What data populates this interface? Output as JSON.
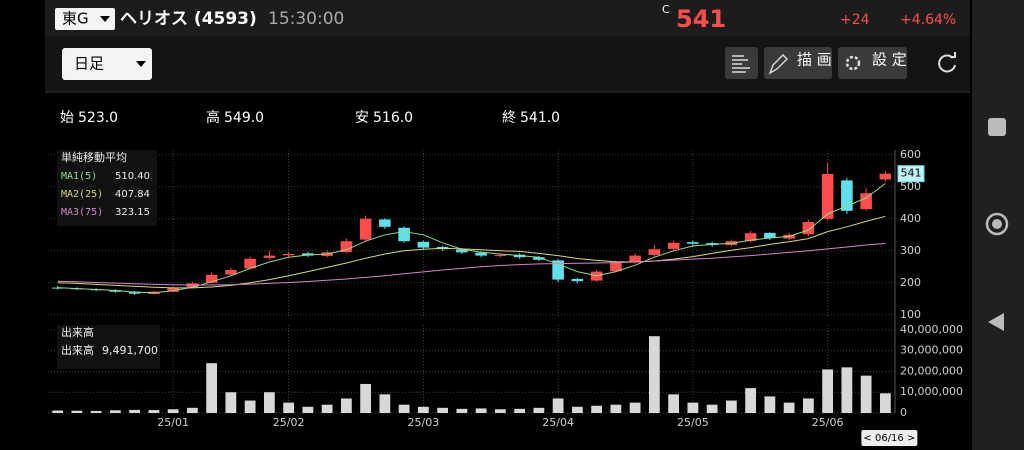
{
  "header": {
    "market": "東G",
    "name": "ヘリオス (4593)",
    "time": "15:30:00",
    "price_prefix": "C",
    "price": "541",
    "change": "+24",
    "change_pct": "+4.64%"
  },
  "toolbar": {
    "period": "日足",
    "draw": "描 画",
    "settings": "設 定"
  },
  "summary": {
    "open_label": "始",
    "open": "523.0",
    "high_label": "高",
    "high": "549.0",
    "low_label": "安",
    "low": "516.0",
    "close_label": "終",
    "close": "541.0"
  },
  "chart_data": [
    {
      "type": "candlestick",
      "legend_title": "単純移動平均",
      "cursor_label": "< 06/16 >",
      "up_color": "#ff4d4d",
      "down_color": "#5fe0ea",
      "categories": [
        null,
        null,
        null,
        null,
        null,
        null,
        "25/01",
        null,
        null,
        null,
        null,
        null,
        "25/02",
        null,
        null,
        null,
        null,
        null,
        null,
        "25/03",
        null,
        null,
        null,
        null,
        null,
        null,
        "25/04",
        null,
        null,
        null,
        null,
        null,
        null,
        "25/05",
        null,
        null,
        null,
        null,
        null,
        null,
        "25/06",
        null,
        null,
        null
      ],
      "open": [
        185,
        183,
        180,
        177,
        172,
        165,
        172,
        186,
        200,
        226,
        245,
        278,
        286,
        292,
        284,
        296,
        335,
        398,
        372,
        328,
        312,
        304,
        294,
        284,
        288,
        280,
        270,
        212,
        207,
        236,
        264,
        287,
        306,
        327,
        324,
        318,
        331,
        356,
        338,
        352,
        400,
        520,
        430,
        523
      ],
      "high": [
        190,
        186,
        183,
        180,
        175,
        176,
        189,
        203,
        232,
        246,
        282,
        300,
        296,
        297,
        300,
        338,
        410,
        402,
        376,
        332,
        316,
        308,
        298,
        292,
        292,
        284,
        274,
        216,
        240,
        268,
        292,
        318,
        332,
        332,
        328,
        335,
        362,
        358,
        356,
        398,
        575,
        528,
        495,
        549
      ],
      "low": [
        179,
        177,
        174,
        169,
        162,
        163,
        170,
        184,
        198,
        222,
        242,
        272,
        280,
        281,
        280,
        292,
        330,
        368,
        325,
        305,
        300,
        290,
        280,
        280,
        275,
        268,
        202,
        198,
        204,
        232,
        260,
        282,
        300,
        316,
        312,
        314,
        326,
        334,
        334,
        346,
        395,
        415,
        425,
        516
      ],
      "close": [
        182,
        180,
        177,
        172,
        166,
        172,
        185,
        198,
        225,
        240,
        275,
        285,
        290,
        285,
        295,
        330,
        400,
        375,
        330,
        310,
        305,
        295,
        285,
        287,
        280,
        272,
        210,
        205,
        235,
        262,
        285,
        305,
        325,
        322,
        318,
        330,
        355,
        340,
        350,
        390,
        540,
        425,
        480,
        541
      ],
      "series": [
        {
          "name": "MA1(5)",
          "color": "#8fdc8f",
          "legend_value": "510.40",
          "values": [
            185,
            182,
            179,
            176,
            171,
            169,
            175,
            186,
            203,
            222,
            245,
            265,
            280,
            287,
            290,
            303,
            330,
            350,
            360,
            350,
            325,
            305,
            296,
            290,
            285,
            280,
            258,
            235,
            222,
            235,
            255,
            280,
            300,
            315,
            320,
            323,
            333,
            340,
            345,
            365,
            415,
            440,
            465,
            510.4
          ]
        },
        {
          "name": "MA2(25)",
          "color": "#d8d878",
          "legend_value": "407.84",
          "values": [
            200,
            198,
            195,
            192,
            189,
            186,
            184,
            184,
            187,
            192,
            200,
            210,
            222,
            235,
            248,
            262,
            277,
            290,
            300,
            305,
            308,
            306,
            303,
            300,
            298,
            292,
            285,
            276,
            270,
            266,
            265,
            268,
            274,
            282,
            292,
            302,
            310,
            320,
            328,
            338,
            360,
            375,
            392,
            407.84
          ]
        },
        {
          "name": "MA3(75)",
          "color": "#d585c8",
          "legend_value": "323.15",
          "values": [
            205,
            203,
            201,
            199,
            197,
            195,
            194,
            193,
            193,
            194,
            196,
            198,
            201,
            204,
            208,
            212,
            217,
            222,
            228,
            234,
            240,
            245,
            250,
            254,
            257,
            259,
            260,
            261,
            262,
            263,
            265,
            268,
            271,
            274,
            277,
            281,
            285,
            290,
            295,
            300,
            306,
            312,
            318,
            323.15
          ]
        }
      ],
      "ylim": [
        90,
        615
      ],
      "yticks": [
        100,
        200,
        300,
        400,
        500,
        600
      ],
      "grid": true
    },
    {
      "type": "bar",
      "title": "出来高",
      "latest_name": "出来高",
      "latest_label": "9,491,700",
      "color": "#d8d8d8",
      "values": [
        1200000,
        1100000,
        1000000,
        1300000,
        1500000,
        1400000,
        1800000,
        2500000,
        24000000,
        10000000,
        6000000,
        10000000,
        5000000,
        3000000,
        4000000,
        7000000,
        14000000,
        9000000,
        4000000,
        3000000,
        2500000,
        2000000,
        2200000,
        1800000,
        2000000,
        2500000,
        7000000,
        3000000,
        3500000,
        4000000,
        5000000,
        37000000,
        9000000,
        5000000,
        4000000,
        6000000,
        12000000,
        8000000,
        5000000,
        7000000,
        21000000,
        22000000,
        18000000,
        9491700
      ],
      "ylim": [
        0,
        42400000
      ],
      "yticks": [
        0,
        {
          "value": 10000000,
          "label": "10,000,000"
        },
        {
          "value": 20000000,
          "label": "20,000,000"
        },
        {
          "value": 30000000,
          "label": "30,000,000"
        },
        {
          "value": 40000000,
          "label": "40,000,000"
        }
      ],
      "grid": true
    }
  ]
}
